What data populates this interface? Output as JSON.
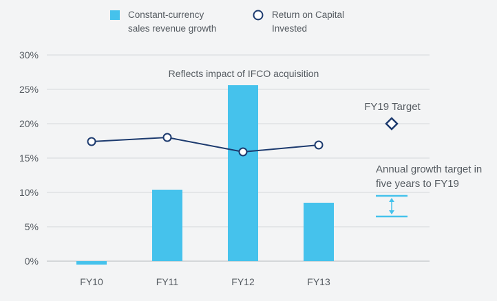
{
  "chart_data": {
    "type": "bar",
    "categories": [
      "FY10",
      "FY11",
      "FY12",
      "FY13"
    ],
    "series": [
      {
        "name": "Constant-currency sales revenue growth",
        "type": "bar",
        "values": [
          -0.5,
          10.4,
          25.6,
          8.5
        ],
        "color": "#45c2ec"
      },
      {
        "name": "Return on Capital Invested",
        "type": "line",
        "values": [
          17.4,
          18.0,
          15.9,
          16.9
        ],
        "color": "#1c3a6e"
      }
    ],
    "ylim": [
      0,
      30
    ],
    "yticks": [
      "0%",
      "5%",
      "10%",
      "15%",
      "20%",
      "25%",
      "30%"
    ],
    "grid": true,
    "legend": {
      "position": "top",
      "bar_label": [
        "Constant-currency",
        "sales revenue growth"
      ],
      "line_label": [
        "Return on Capital",
        "Invested"
      ]
    },
    "annotations": {
      "ifco": "Reflects impact of IFCO acquisition",
      "fy19_target_label": "FY19 Target",
      "fy19_target_value": 20,
      "growth_target_label": [
        "Annual growth target in",
        "five years to FY19"
      ],
      "growth_target_range": [
        6.5,
        9.5
      ]
    }
  }
}
